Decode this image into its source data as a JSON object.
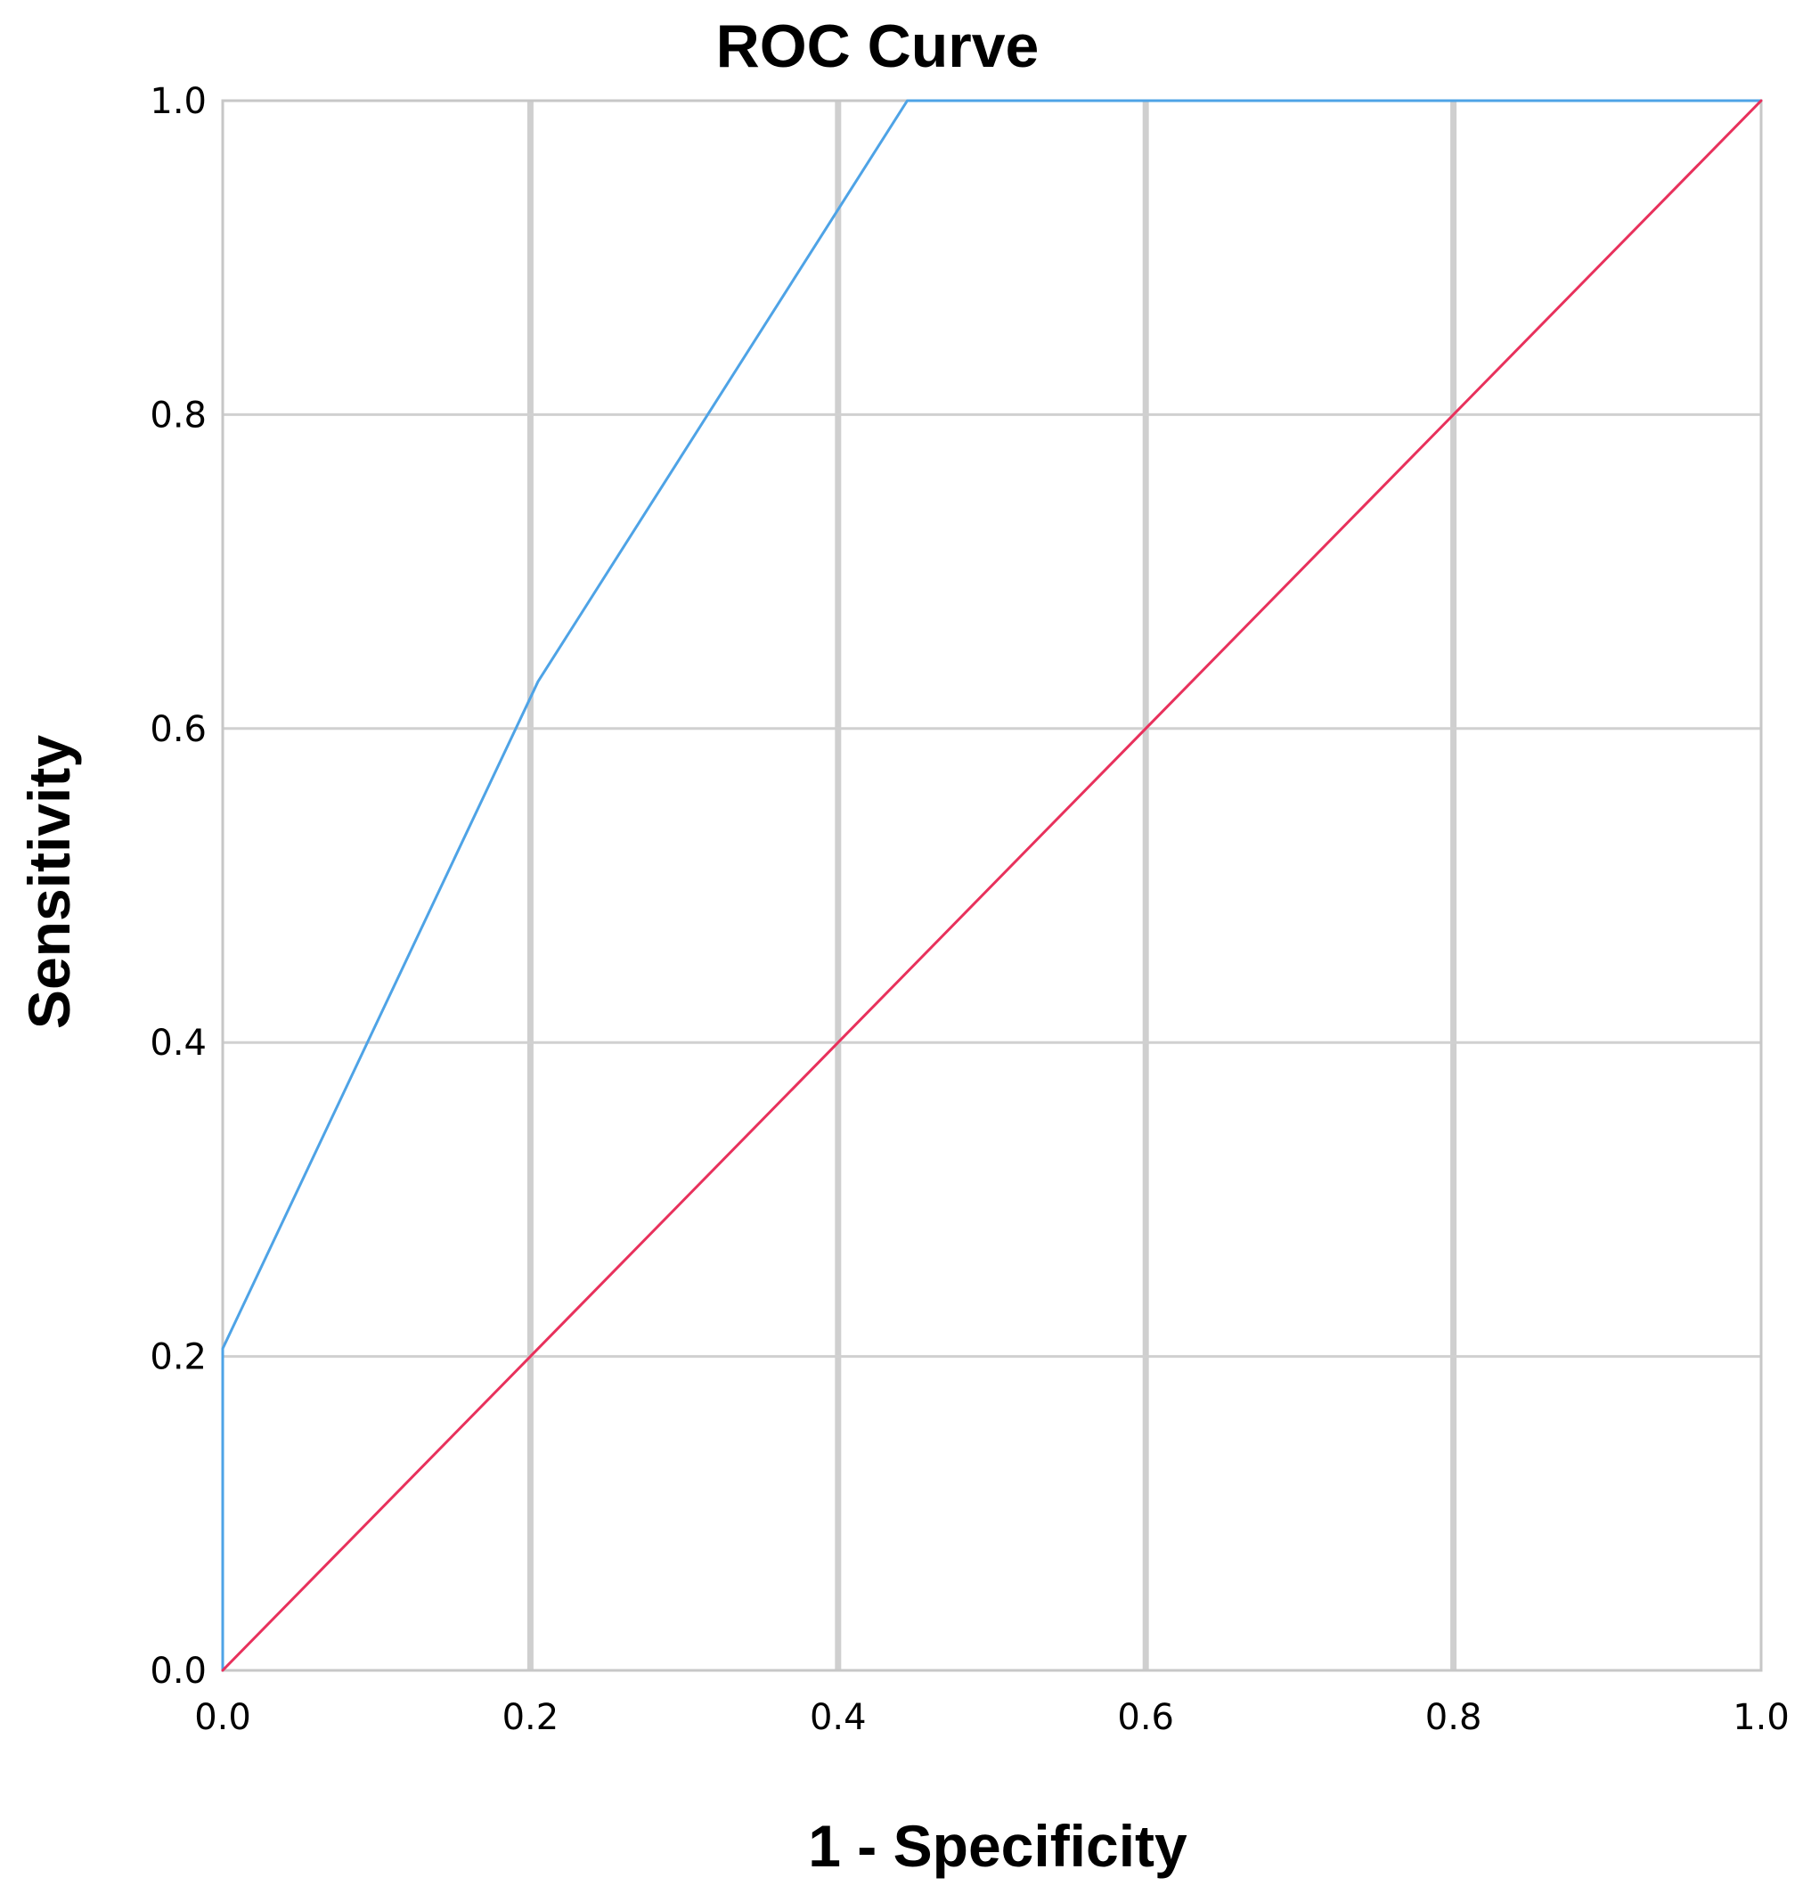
{
  "chart_data": {
    "type": "line",
    "title": "ROC Curve",
    "xlabel": "1 - Specificity",
    "ylabel": "Sensitivity",
    "xlim": [
      0,
      1
    ],
    "ylim": [
      0,
      1
    ],
    "x_ticks": [
      "0.0",
      "0.2",
      "0.4",
      "0.6",
      "0.8",
      "1.0"
    ],
    "y_ticks": [
      "0.0",
      "0.2",
      "0.4",
      "0.6",
      "0.8",
      "1.0"
    ],
    "grid": true,
    "legend": "none",
    "series": [
      {
        "color": "#4ea3e6",
        "x": [
          0,
          0,
          0.205,
          0.445,
          1
        ],
        "y": [
          0,
          0.205,
          0.63,
          1,
          1
        ]
      },
      {
        "color": "#e8315c",
        "x": [
          0,
          1
        ],
        "y": [
          0,
          1
        ]
      }
    ]
  }
}
